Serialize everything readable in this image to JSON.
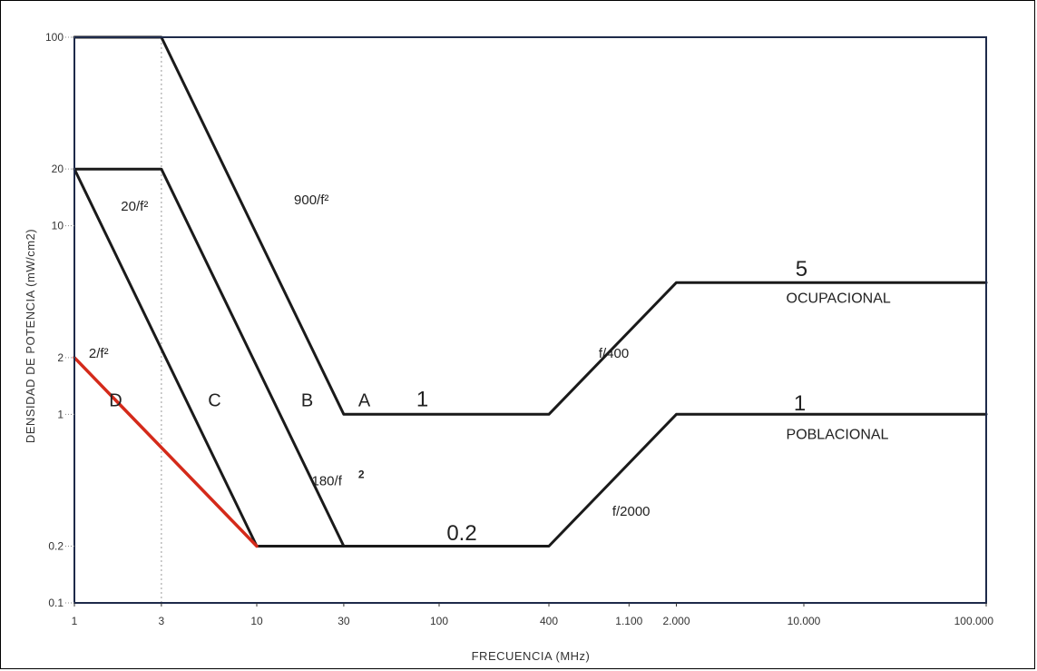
{
  "chart_data": {
    "type": "line",
    "title": "",
    "xlabel": "FRECUENCIA (MHz)",
    "ylabel": "DENSIDAD DE POTENCIA (mW/cm2)",
    "x_scale": "log",
    "y_scale": "log",
    "xlim": [
      1,
      100000
    ],
    "ylim": [
      0.1,
      100
    ],
    "x_ticks": [
      {
        "value": 1,
        "label": "1"
      },
      {
        "value": 3,
        "label": "3"
      },
      {
        "value": 10,
        "label": "10"
      },
      {
        "value": 30,
        "label": "30"
      },
      {
        "value": 100,
        "label": "100"
      },
      {
        "value": 400,
        "label": "400"
      },
      {
        "value": 1100,
        "label": "1.100"
      },
      {
        "value": 2000,
        "label": "2.000"
      },
      {
        "value": 10000,
        "label": "10.000"
      },
      {
        "value": 100000,
        "label": "100.000"
      }
    ],
    "y_ticks": [
      {
        "value": 0.1,
        "label": "0.1"
      },
      {
        "value": 0.2,
        "label": "0.2"
      },
      {
        "value": 1,
        "label": "1"
      },
      {
        "value": 2,
        "label": "2"
      },
      {
        "value": 10,
        "label": "10"
      },
      {
        "value": 20,
        "label": "20"
      },
      {
        "value": 100,
        "label": "100"
      }
    ],
    "grid": false,
    "series": [
      {
        "label": "A",
        "color": "#1a1a1a",
        "points": [
          [
            1,
            100
          ],
          [
            3,
            100
          ],
          [
            30,
            1
          ],
          [
            400,
            1
          ],
          [
            2000,
            5
          ],
          [
            100000,
            5
          ]
        ]
      },
      {
        "label": "B",
        "color": "#1a1a1a",
        "points": [
          [
            1,
            20
          ],
          [
            3,
            20
          ],
          [
            30,
            0.2
          ]
        ]
      },
      {
        "label": "C",
        "color": "#1a1a1a",
        "points": [
          [
            1,
            20
          ],
          [
            10,
            0.2
          ],
          [
            400,
            0.2
          ],
          [
            2000,
            1
          ],
          [
            100000,
            1
          ]
        ]
      },
      {
        "label": "D",
        "color": "#d42a1a",
        "points": [
          [
            1,
            2
          ],
          [
            10,
            0.2
          ]
        ]
      }
    ],
    "annotations": [
      {
        "text": "900/f²",
        "x": 16,
        "y": 13
      },
      {
        "text": "20/f²",
        "x": 1.8,
        "y": 12
      },
      {
        "text": "2/f²",
        "x": 1.2,
        "y": 2.0
      },
      {
        "text": "D",
        "x": 1.55,
        "y": 1.1
      },
      {
        "text": "C",
        "x": 5.4,
        "y": 1.1
      },
      {
        "text": "B",
        "x": 17.5,
        "y": 1.1
      },
      {
        "text": "A",
        "x": 36,
        "y": 1.1
      },
      {
        "text": "1",
        "x": 75,
        "y": 1.1
      },
      {
        "text": "180/f",
        "x": 20,
        "y": 0.42
      },
      {
        "text": "2",
        "x": 36,
        "y": 0.46
      },
      {
        "text": "0.2",
        "x": 110,
        "y": 0.215
      },
      {
        "text": "f/400",
        "x": 750,
        "y": 2.0
      },
      {
        "text": "f/2000",
        "x": 890,
        "y": 0.29
      },
      {
        "text": "5",
        "x": 9000,
        "y": 5.4
      },
      {
        "text": "OCUPACIONAL",
        "x": 8000,
        "y": 3.9
      },
      {
        "text": "1",
        "x": 8800,
        "y": 1.05
      },
      {
        "text": "POBLACIONAL",
        "x": 8000,
        "y": 0.74
      }
    ]
  }
}
